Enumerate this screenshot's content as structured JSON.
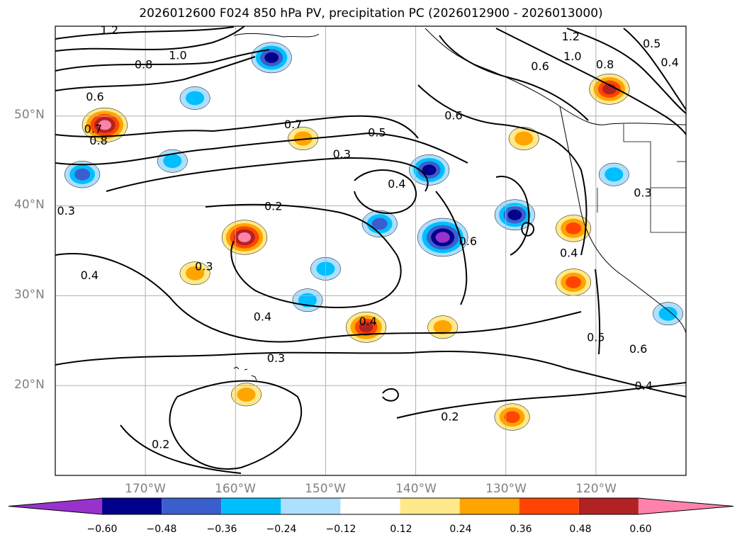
{
  "title": "2026012600 F024 850 hPa PV, precipitation PC (2026012900 - 2026013000)",
  "map_data": {
    "projection": "cylindrical",
    "lon_range": [
      -180,
      -110
    ],
    "lat_range": [
      10,
      60
    ],
    "lat_ticks": [
      "50°N",
      "40°N",
      "30°N",
      "20°N"
    ],
    "lon_ticks": [
      "170°W",
      "160°W",
      "150°W",
      "140°W",
      "130°W",
      "120°W"
    ],
    "contour_labels": [
      {
        "text": "1.2",
        "lon": -174,
        "lat": 59.6
      },
      {
        "text": "1.0",
        "lon": -166.4,
        "lat": 56.8
      },
      {
        "text": "0.8",
        "lon": -170.2,
        "lat": 55.8
      },
      {
        "text": "0.6",
        "lon": -175.6,
        "lat": 52.2
      },
      {
        "text": "0.7",
        "lon": -175.8,
        "lat": 48.6
      },
      {
        "text": "0.8",
        "lon": -175.2,
        "lat": 47.3
      },
      {
        "text": "0.3",
        "lon": -178.8,
        "lat": 39.5
      },
      {
        "text": "0.7",
        "lon": -153.6,
        "lat": 49.1
      },
      {
        "text": "0.5",
        "lon": -144.3,
        "lat": 48.2
      },
      {
        "text": "0.3",
        "lon": -148.2,
        "lat": 45.8
      },
      {
        "text": "0.4",
        "lon": -142.1,
        "lat": 42.5
      },
      {
        "text": "0.2",
        "lon": -155.8,
        "lat": 40.0
      },
      {
        "text": "0.6",
        "lon": -135.8,
        "lat": 50.1
      },
      {
        "text": "0.6",
        "lon": -134.2,
        "lat": 36.1
      },
      {
        "text": "0.4",
        "lon": -176.2,
        "lat": 32.3
      },
      {
        "text": "0.3",
        "lon": -163.5,
        "lat": 33.3
      },
      {
        "text": "0.4",
        "lon": -157.0,
        "lat": 27.7
      },
      {
        "text": "0.4",
        "lon": -145.3,
        "lat": 27.2
      },
      {
        "text": "0.3",
        "lon": -155.5,
        "lat": 23.1
      },
      {
        "text": "0.2",
        "lon": -136.2,
        "lat": 16.6
      },
      {
        "text": "0.2",
        "lon": -168.3,
        "lat": 13.5
      },
      {
        "text": "1.2",
        "lon": -122.8,
        "lat": 58.9
      },
      {
        "text": "1.0",
        "lon": -122.6,
        "lat": 56.7
      },
      {
        "text": "0.8",
        "lon": -119.0,
        "lat": 55.8
      },
      {
        "text": "0.6",
        "lon": -126.2,
        "lat": 55.6
      },
      {
        "text": "0.5",
        "lon": -113.8,
        "lat": 58.1
      },
      {
        "text": "0.4",
        "lon": -111.8,
        "lat": 56.0
      },
      {
        "text": "0.3",
        "lon": -114.8,
        "lat": 41.5
      },
      {
        "text": "0.4",
        "lon": -123.0,
        "lat": 34.8
      },
      {
        "text": "0.5",
        "lon": -120.0,
        "lat": 25.4
      },
      {
        "text": "0.6",
        "lon": -115.3,
        "lat": 24.1
      },
      {
        "text": "0.4",
        "lon": -114.7,
        "lat": 20.0
      }
    ],
    "precip_regions": [
      {
        "category": "positive",
        "value": 0.6,
        "lon": -174.5,
        "lat": 49.0
      },
      {
        "category": "negative",
        "value": -0.4,
        "lon": -177.0,
        "lat": 43.5
      },
      {
        "category": "negative",
        "value": -0.5,
        "lon": -156.0,
        "lat": 56.5
      },
      {
        "category": "negative",
        "value": -0.3,
        "lon": -164.5,
        "lat": 52.0
      },
      {
        "category": "negative",
        "value": -0.3,
        "lon": -167.0,
        "lat": 45.0
      },
      {
        "category": "positive",
        "value": 0.6,
        "lon": -159.0,
        "lat": 36.5
      },
      {
        "category": "positive",
        "value": 0.3,
        "lon": -164.5,
        "lat": 32.5
      },
      {
        "category": "negative",
        "value": -0.3,
        "lon": -150.0,
        "lat": 33.0
      },
      {
        "category": "negative",
        "value": -0.3,
        "lon": -152.0,
        "lat": 29.5
      },
      {
        "category": "positive",
        "value": 0.5,
        "lon": -145.5,
        "lat": 26.5
      },
      {
        "category": "negative",
        "value": -0.4,
        "lon": -144.0,
        "lat": 38.0
      },
      {
        "category": "negative",
        "value": -0.5,
        "lon": -138.5,
        "lat": 44.0
      },
      {
        "category": "negative",
        "value": -0.7,
        "lon": -137.0,
        "lat": 36.5
      },
      {
        "category": "negative",
        "value": -0.5,
        "lon": -129.0,
        "lat": 39.0
      },
      {
        "category": "positive",
        "value": 0.3,
        "lon": -128.0,
        "lat": 47.5
      },
      {
        "category": "positive",
        "value": 0.5,
        "lon": -118.5,
        "lat": 53.0
      },
      {
        "category": "positive",
        "value": 0.4,
        "lon": -122.5,
        "lat": 37.5
      },
      {
        "category": "positive",
        "value": 0.4,
        "lon": -122.5,
        "lat": 31.5
      },
      {
        "category": "positive",
        "value": 0.4,
        "lon": -129.3,
        "lat": 16.5
      },
      {
        "category": "positive",
        "value": 0.3,
        "lon": -137.0,
        "lat": 26.5
      },
      {
        "category": "positive",
        "value": 0.3,
        "lon": -158.8,
        "lat": 19.0
      },
      {
        "category": "negative",
        "value": -0.3,
        "lon": -118.0,
        "lat": 43.5
      },
      {
        "category": "negative",
        "value": -0.3,
        "lon": -112.0,
        "lat": 28.0
      },
      {
        "category": "positive",
        "value": 0.3,
        "lon": -152.5,
        "lat": 47.5
      }
    ]
  },
  "colorbar": {
    "ticks": [
      "−0.60",
      "−0.48",
      "−0.36",
      "−0.24",
      "−0.12",
      "0.12",
      "0.24",
      "0.36",
      "0.48",
      "0.60"
    ],
    "colors": [
      "#9932CC",
      "#00008B",
      "#3A5FCD",
      "#00BFFF",
      "#ADDFFF",
      "#FFFFFF",
      "#FFE98A",
      "#FFA500",
      "#FF4500",
      "#B22222",
      "#FF82AB"
    ]
  }
}
